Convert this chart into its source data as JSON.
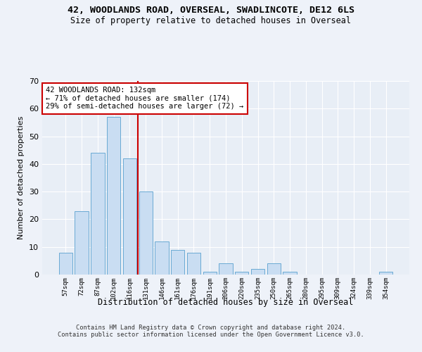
{
  "title": "42, WOODLANDS ROAD, OVERSEAL, SWADLINCOTE, DE12 6LS",
  "subtitle": "Size of property relative to detached houses in Overseal",
  "xlabel": "Distribution of detached houses by size in Overseal",
  "ylabel": "Number of detached properties",
  "categories": [
    "57sqm",
    "72sqm",
    "87sqm",
    "102sqm",
    "116sqm",
    "131sqm",
    "146sqm",
    "161sqm",
    "176sqm",
    "191sqm",
    "206sqm",
    "220sqm",
    "235sqm",
    "250sqm",
    "265sqm",
    "280sqm",
    "295sqm",
    "309sqm",
    "324sqm",
    "339sqm",
    "354sqm"
  ],
  "values": [
    8,
    23,
    44,
    57,
    42,
    30,
    12,
    9,
    8,
    1,
    4,
    1,
    2,
    4,
    1,
    0,
    0,
    0,
    0,
    0,
    1
  ],
  "bar_color": "#c9ddf2",
  "bar_edge_color": "#6aaad4",
  "vline_index": 5,
  "annotation_text": "42 WOODLANDS ROAD: 132sqm\n← 71% of detached houses are smaller (174)\n29% of semi-detached houses are larger (72) →",
  "annotation_box_color": "#ffffff",
  "annotation_box_edge_color": "#cc0000",
  "vline_color": "#cc0000",
  "ylim": [
    0,
    70
  ],
  "yticks": [
    0,
    10,
    20,
    30,
    40,
    50,
    60,
    70
  ],
  "footer_line1": "Contains HM Land Registry data © Crown copyright and database right 2024.",
  "footer_line2": "Contains public sector information licensed under the Open Government Licence v3.0.",
  "bg_color": "#eef2f9",
  "plot_bg_color": "#e8eef6"
}
